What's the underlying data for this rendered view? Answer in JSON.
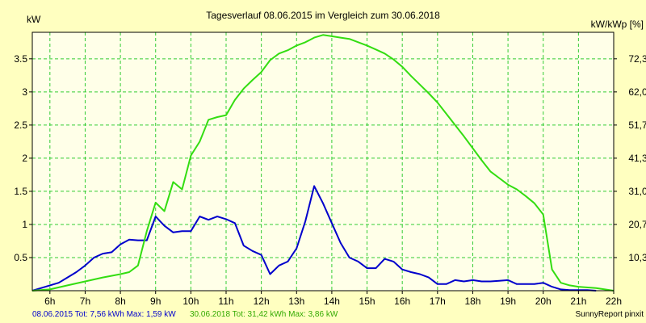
{
  "chart_data": {
    "type": "line",
    "title": "Tagesverlauf 08.06.2015 im Vergleich zum 30.06.2018",
    "ylabel_left": "kW",
    "ylabel_right": "kW/kWp [%]",
    "xlim": [
      5.5,
      22.0
    ],
    "ylim": [
      0,
      3.9
    ],
    "grid": true,
    "x_ticks": [
      {
        "value": 6,
        "label": "6h"
      },
      {
        "value": 7,
        "label": "7h"
      },
      {
        "value": 8,
        "label": "8h"
      },
      {
        "value": 9,
        "label": "9h"
      },
      {
        "value": 10,
        "label": "10h"
      },
      {
        "value": 11,
        "label": "11h"
      },
      {
        "value": 12,
        "label": "12h"
      },
      {
        "value": 13,
        "label": "13h"
      },
      {
        "value": 14,
        "label": "14h"
      },
      {
        "value": 15,
        "label": "15h"
      },
      {
        "value": 16,
        "label": "16h"
      },
      {
        "value": 17,
        "label": "17h"
      },
      {
        "value": 18,
        "label": "18h"
      },
      {
        "value": 19,
        "label": "19h"
      },
      {
        "value": 20,
        "label": "20h"
      },
      {
        "value": 21,
        "label": "21h"
      },
      {
        "value": 22,
        "label": "22h"
      }
    ],
    "y_ticks_left": [
      {
        "value": 0.5,
        "label": "0.5"
      },
      {
        "value": 1.0,
        "label": "1"
      },
      {
        "value": 1.5,
        "label": "1.5"
      },
      {
        "value": 2.0,
        "label": "2"
      },
      {
        "value": 2.5,
        "label": "2.5"
      },
      {
        "value": 3.0,
        "label": "3"
      },
      {
        "value": 3.5,
        "label": "3.5"
      }
    ],
    "y_ticks_right": [
      {
        "value": 0.5,
        "label": "10,3"
      },
      {
        "value": 1.0,
        "label": "20,7"
      },
      {
        "value": 1.5,
        "label": "31,0"
      },
      {
        "value": 2.0,
        "label": "41,3"
      },
      {
        "value": 2.5,
        "label": "51,7"
      },
      {
        "value": 3.0,
        "label": "62,0"
      },
      {
        "value": 3.5,
        "label": "72,3"
      }
    ],
    "series": [
      {
        "color": "#0000cc",
        "x": [
          5.5,
          6.0,
          6.25,
          6.5,
          6.75,
          7.0,
          7.25,
          7.5,
          7.75,
          8.0,
          8.25,
          8.5,
          8.75,
          9.0,
          9.25,
          9.5,
          9.75,
          10.0,
          10.25,
          10.5,
          10.75,
          11.0,
          11.25,
          11.5,
          11.75,
          12.0,
          12.25,
          12.5,
          12.75,
          13.0,
          13.25,
          13.5,
          13.75,
          14.0,
          14.25,
          14.5,
          14.75,
          15.0,
          15.25,
          15.5,
          15.75,
          16.0,
          16.25,
          16.5,
          16.75,
          17.0,
          17.25,
          17.5,
          17.75,
          18.0,
          18.25,
          18.5,
          18.75,
          19.0,
          19.25,
          19.5,
          19.75,
          20.0,
          20.25,
          20.5,
          20.75,
          21.0,
          21.25,
          21.5
        ],
        "y": [
          0.0,
          0.08,
          0.12,
          0.2,
          0.28,
          0.38,
          0.5,
          0.56,
          0.58,
          0.7,
          0.77,
          0.76,
          0.76,
          1.12,
          0.98,
          0.88,
          0.9,
          0.9,
          1.12,
          1.07,
          1.12,
          1.08,
          1.02,
          0.68,
          0.6,
          0.54,
          0.25,
          0.38,
          0.44,
          0.64,
          1.05,
          1.58,
          1.32,
          1.02,
          0.72,
          0.5,
          0.44,
          0.34,
          0.34,
          0.48,
          0.44,
          0.32,
          0.28,
          0.25,
          0.2,
          0.1,
          0.1,
          0.16,
          0.14,
          0.16,
          0.14,
          0.14,
          0.15,
          0.16,
          0.1,
          0.1,
          0.1,
          0.12,
          0.06,
          0.02,
          0.01,
          0.01,
          0.01,
          0.0
        ]
      },
      {
        "color": "#33dd11",
        "x": [
          5.5,
          6.0,
          6.5,
          7.0,
          7.5,
          8.0,
          8.25,
          8.5,
          8.75,
          9.0,
          9.25,
          9.5,
          9.75,
          10.0,
          10.25,
          10.5,
          10.75,
          11.0,
          11.25,
          11.5,
          11.75,
          12.0,
          12.25,
          12.5,
          12.75,
          13.0,
          13.25,
          13.5,
          13.75,
          14.0,
          14.25,
          14.5,
          14.75,
          15.0,
          15.25,
          15.5,
          15.75,
          16.0,
          16.25,
          16.5,
          16.75,
          17.0,
          17.25,
          17.5,
          17.75,
          18.0,
          18.25,
          18.5,
          18.75,
          19.0,
          19.25,
          19.5,
          19.75,
          20.0,
          20.25,
          20.5,
          20.75,
          21.0,
          21.5,
          22.0
        ],
        "y": [
          0.0,
          0.02,
          0.08,
          0.14,
          0.2,
          0.25,
          0.28,
          0.38,
          0.9,
          1.33,
          1.2,
          1.64,
          1.53,
          2.04,
          2.25,
          2.58,
          2.62,
          2.65,
          2.88,
          3.05,
          3.18,
          3.3,
          3.48,
          3.58,
          3.63,
          3.7,
          3.75,
          3.82,
          3.86,
          3.84,
          3.82,
          3.8,
          3.75,
          3.7,
          3.64,
          3.58,
          3.49,
          3.38,
          3.24,
          3.11,
          2.98,
          2.84,
          2.67,
          2.5,
          2.33,
          2.15,
          1.97,
          1.8,
          1.7,
          1.6,
          1.53,
          1.43,
          1.32,
          1.15,
          0.32,
          0.12,
          0.08,
          0.06,
          0.04,
          0.0
        ]
      }
    ]
  },
  "legend": {
    "text_2015": "08.06.2015 Tot: 7,56 kWh Max: 1,59 kW",
    "text_2018": "30.06.2018 Tot: 31,42 kWh Max: 3,86 kW"
  },
  "credit": "SunnyReport pinxit",
  "colors": {
    "background": "#ffffc0",
    "plot_area": "#ffffe8",
    "grid": "#33cc33",
    "series_2015": "#0000cc",
    "series_2018": "#33dd11"
  }
}
